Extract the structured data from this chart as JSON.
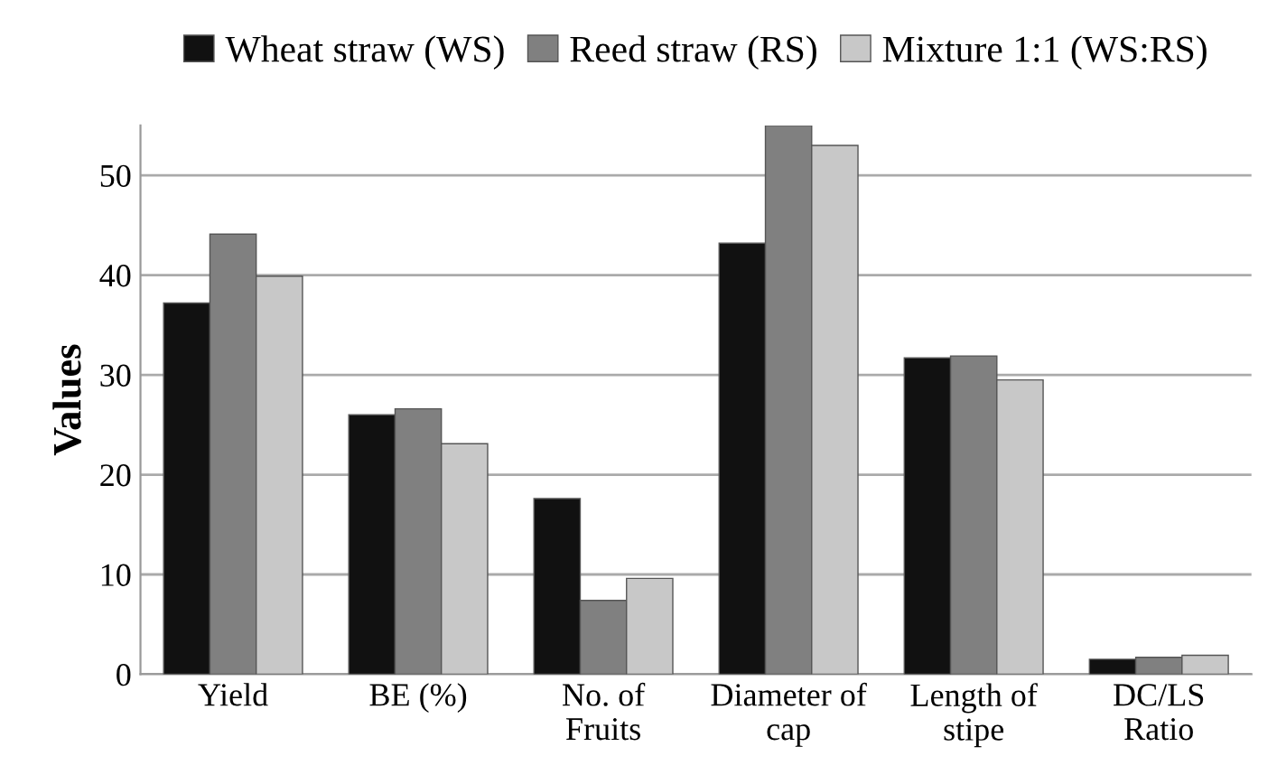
{
  "chart_data": {
    "type": "bar",
    "ylabel": "Values",
    "categories": [
      "Yield",
      "BE (%)",
      "No. of\nFruits",
      "Diameter of\ncap",
      "Length of\nstipe",
      "DC/LS\nRatio"
    ],
    "series": [
      {
        "name": "Wheat straw (WS)",
        "color": "#111111",
        "values": [
          37.2,
          26.0,
          17.6,
          43.2,
          31.7,
          1.5
        ]
      },
      {
        "name": "Reed straw (RS)",
        "color": "#808080",
        "values": [
          44.1,
          26.6,
          7.4,
          55.0,
          31.9,
          1.7
        ]
      },
      {
        "name": "Mixture 1:1 (WS:RS)",
        "color": "#c8c8c8",
        "values": [
          39.9,
          23.1,
          9.6,
          53.0,
          29.5,
          1.9
        ]
      }
    ],
    "ylim": [
      0,
      55
    ],
    "yticks": [
      0,
      10,
      20,
      30,
      40,
      50
    ],
    "grid": "y",
    "legend": "top"
  }
}
